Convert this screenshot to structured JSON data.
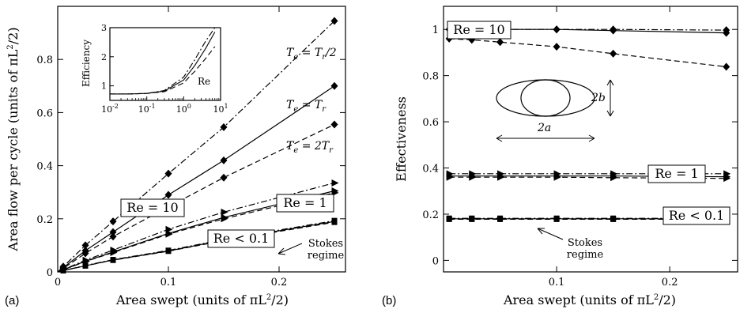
{
  "panel_a": {
    "label": "(a)",
    "xlabel_prefix": "Area swept (units of ",
    "ylabel_prefix": "Area flow per cycle (units of ",
    "units_pi_l": "πL",
    "units_sup": "2",
    "units_suffix": "/2)",
    "stokes_line1": "Stokes",
    "stokes_line2": "regime",
    "box_labels": [
      "Re = 10",
      "Re = 1",
      "Re < 0.1"
    ],
    "curve_labels": [
      {
        "te": "T",
        "te_sub": "e",
        "rel": " = T",
        "tr_sub": "r",
        "suffix": "/2",
        "prefix": ""
      },
      {
        "te": "T",
        "te_sub": "e",
        "rel": " = T",
        "tr_sub": "r",
        "suffix": "",
        "prefix": ""
      },
      {
        "te": "T",
        "te_sub": "e",
        "rel": " = 2T",
        "tr_sub": "r",
        "suffix": "",
        "prefix": ""
      }
    ],
    "inset": {
      "ylabel": "Efficiency",
      "xlabel": "Re",
      "xticks": [
        "10",
        "10",
        "10",
        "10"
      ],
      "xtick_exp": [
        "-2",
        "-1",
        "0",
        "1"
      ],
      "yticks": [
        "1",
        "2",
        "3"
      ]
    }
  },
  "panel_b": {
    "label": "(b)",
    "xlabel_prefix": "Area swept (units of ",
    "ylabel": "Effectiveness",
    "units_pi_l": "πL",
    "units_sup": "2",
    "units_suffix": "/2)",
    "stokes_line1": "Stokes",
    "stokes_line2": "regime",
    "box_labels": [
      "Re = 10",
      "Re = 1",
      "Re < 0.1"
    ],
    "dim_a": "2a",
    "dim_b": "2b"
  },
  "chart_data": [
    {
      "type": "line",
      "panel": "(a)",
      "xlabel": "Area swept (units of πL²/2)",
      "ylabel": "Area flow per cycle (units of πL²/2)",
      "xlim": [
        0,
        0.26
      ],
      "ylim": [
        0,
        1.0
      ],
      "xticks": [
        0,
        0.1,
        0.2
      ],
      "xtick_labels": [
        "0",
        "0.1",
        "0.2"
      ],
      "yticks": [
        0,
        0.2,
        0.4,
        0.6,
        0.8
      ],
      "ytick_labels": [
        "0",
        "0.2",
        "0.4",
        "0.6",
        "0.8"
      ],
      "x": [
        0,
        0.005,
        0.025,
        0.05,
        0.1,
        0.15,
        0.25
      ],
      "series": [
        {
          "name": "Re = 10, Te = Tr/2",
          "style": "dashdot",
          "marker": "diamond",
          "values": [
            0,
            0.02,
            0.1,
            0.19,
            0.37,
            0.545,
            0.945
          ]
        },
        {
          "name": "Re = 10, Te = Tr",
          "style": "solid",
          "marker": "diamond",
          "values": [
            0,
            0.016,
            0.08,
            0.15,
            0.29,
            0.42,
            0.7
          ]
        },
        {
          "name": "Re = 10, Te = 2Tr",
          "style": "dashed",
          "marker": "diamond",
          "values": [
            0,
            0.013,
            0.07,
            0.133,
            0.245,
            0.355,
            0.555
          ]
        },
        {
          "name": "Re = 1, Te = Tr/2",
          "style": "dashdot",
          "marker": "triangle",
          "values": [
            0,
            0.009,
            0.044,
            0.082,
            0.16,
            0.225,
            0.335
          ]
        },
        {
          "name": "Re = 1, Te = Tr",
          "style": "solid",
          "marker": "triangle",
          "values": [
            0,
            0.008,
            0.04,
            0.075,
            0.145,
            0.205,
            0.305
          ]
        },
        {
          "name": "Re = 1, Te = 2Tr",
          "style": "dashed",
          "marker": "triangle",
          "values": [
            0,
            0.008,
            0.039,
            0.073,
            0.142,
            0.2,
            0.298
          ]
        },
        {
          "name": "Re < 0.1, Te = Tr/2",
          "style": "dashdot",
          "marker": "square",
          "values": [
            0,
            0.005,
            0.024,
            0.046,
            0.081,
            0.122,
            0.193
          ]
        },
        {
          "name": "Re < 0.1, Te = Tr",
          "style": "solid",
          "marker": "square",
          "values": [
            0,
            0.005,
            0.023,
            0.045,
            0.079,
            0.12,
            0.19
          ]
        },
        {
          "name": "Re < 0.1, Te = 2Tr",
          "style": "dashed",
          "marker": "square",
          "values": [
            0,
            0.005,
            0.023,
            0.044,
            0.078,
            0.118,
            0.187
          ]
        }
      ],
      "inset": {
        "type": "line",
        "xscale": "log",
        "xlabel": "Re",
        "ylabel": "Efficiency",
        "xlim": [
          0.01,
          10
        ],
        "ylim": [
          0.5,
          3
        ],
        "x": [
          0.01,
          0.03,
          0.1,
          0.3,
          1,
          2,
          4,
          7
        ],
        "series": [
          {
            "style": "solid",
            "values": [
              0.72,
              0.72,
              0.74,
              0.82,
              1.2,
              1.7,
              2.3,
              2.85
            ]
          },
          {
            "style": "dashdot",
            "values": [
              0.72,
              0.72,
              0.74,
              0.84,
              1.3,
              1.9,
              2.55,
              3.0
            ]
          },
          {
            "style": "dashed",
            "values": [
              0.72,
              0.72,
              0.74,
              0.8,
              1.1,
              1.5,
              1.95,
              2.35
            ]
          }
        ]
      }
    },
    {
      "type": "line",
      "panel": "(b)",
      "xlabel": "Area swept (units of πL²/2)",
      "ylabel": "Effectiveness",
      "xlim": [
        0,
        0.26
      ],
      "ylim": [
        -0.05,
        1.1
      ],
      "xticks": [
        0.1,
        0.2
      ],
      "xtick_labels": [
        "0.1",
        "0.2"
      ],
      "yticks": [
        0,
        0.2,
        0.4,
        0.6,
        0.8,
        1
      ],
      "ytick_labels": [
        "0",
        "0.2",
        "0.4",
        "0.6",
        "0.8",
        "1"
      ],
      "x": [
        0.005,
        0.025,
        0.05,
        0.1,
        0.15,
        0.25
      ],
      "series": [
        {
          "name": "Re = 10, Te = Tr/2",
          "style": "dashdot",
          "marker": "diamond",
          "values": [
            1.0,
            1.0,
            1.0,
            1.0,
            1.0,
            0.997
          ]
        },
        {
          "name": "Re = 10, Te = Tr",
          "style": "solid",
          "marker": "diamond",
          "values": [
            1.0,
            1.0,
            1.0,
            1.0,
            0.995,
            0.985
          ]
        },
        {
          "name": "Re = 10, Te = 2Tr",
          "style": "dashed",
          "marker": "diamond",
          "values": [
            0.96,
            0.955,
            0.945,
            0.925,
            0.895,
            0.838
          ]
        },
        {
          "name": "Re = 1, Te = Tr/2",
          "style": "dashdot",
          "marker": "triangle",
          "values": [
            0.375,
            0.375,
            0.375,
            0.375,
            0.375,
            0.375
          ]
        },
        {
          "name": "Re = 1, Te = Tr",
          "style": "solid",
          "marker": "triangle",
          "values": [
            0.365,
            0.365,
            0.365,
            0.365,
            0.365,
            0.362
          ]
        },
        {
          "name": "Re = 1, Te = 2Tr",
          "style": "dashed",
          "marker": "triangle",
          "values": [
            0.36,
            0.36,
            0.36,
            0.36,
            0.358,
            0.355
          ]
        },
        {
          "name": "Re < 0.1, Te = Tr/2",
          "style": "dashdot",
          "marker": "square",
          "values": [
            0.182,
            0.182,
            0.182,
            0.182,
            0.182,
            0.182
          ]
        },
        {
          "name": "Re < 0.1, Te = Tr",
          "style": "solid",
          "marker": "square",
          "values": [
            0.18,
            0.18,
            0.18,
            0.18,
            0.18,
            0.18
          ]
        },
        {
          "name": "Re < 0.1, Te = 2Tr",
          "style": "dashed",
          "marker": "square",
          "values": [
            0.178,
            0.178,
            0.178,
            0.178,
            0.178,
            0.178
          ]
        }
      ]
    }
  ]
}
